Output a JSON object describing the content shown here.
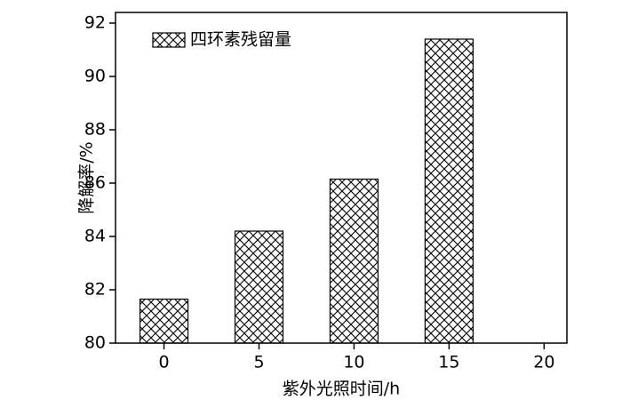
{
  "chart_data": {
    "type": "bar",
    "x_label": "紫外光照时间/h",
    "y_label": "降解率/%",
    "x": [
      0,
      5,
      10,
      15
    ],
    "series": [
      {
        "name": "四环素残留量",
        "color": "#000000",
        "values": [
          81.65,
          84.2,
          86.15,
          91.4
        ]
      }
    ],
    "xlim": [
      -2.55,
      21.2
    ],
    "xticks": [
      0,
      5,
      10,
      15,
      20
    ],
    "ylim": [
      80,
      92.4
    ],
    "yticks": [
      80,
      82,
      84,
      86,
      88,
      90,
      92
    ],
    "legend": "upper left"
  }
}
